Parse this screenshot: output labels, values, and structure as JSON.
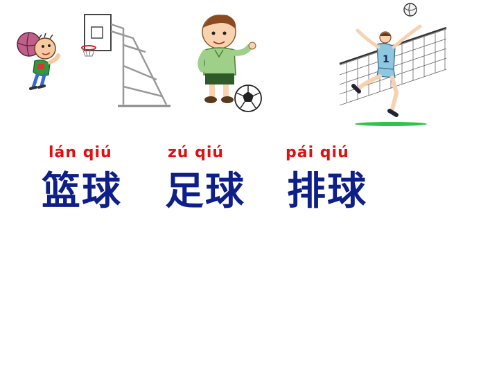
{
  "colors": {
    "pinyin": "#e01010",
    "hanzi": "#0f1f8a",
    "court_green": "#2ec44a"
  },
  "words": [
    {
      "pinyin": "lán qiú",
      "hanzi": "篮球"
    },
    {
      "pinyin": "zú qiú",
      "hanzi": "足球"
    },
    {
      "pinyin": "pái qiú",
      "hanzi": "排球"
    }
  ],
  "illustrations": {
    "jersey_number": "1"
  }
}
